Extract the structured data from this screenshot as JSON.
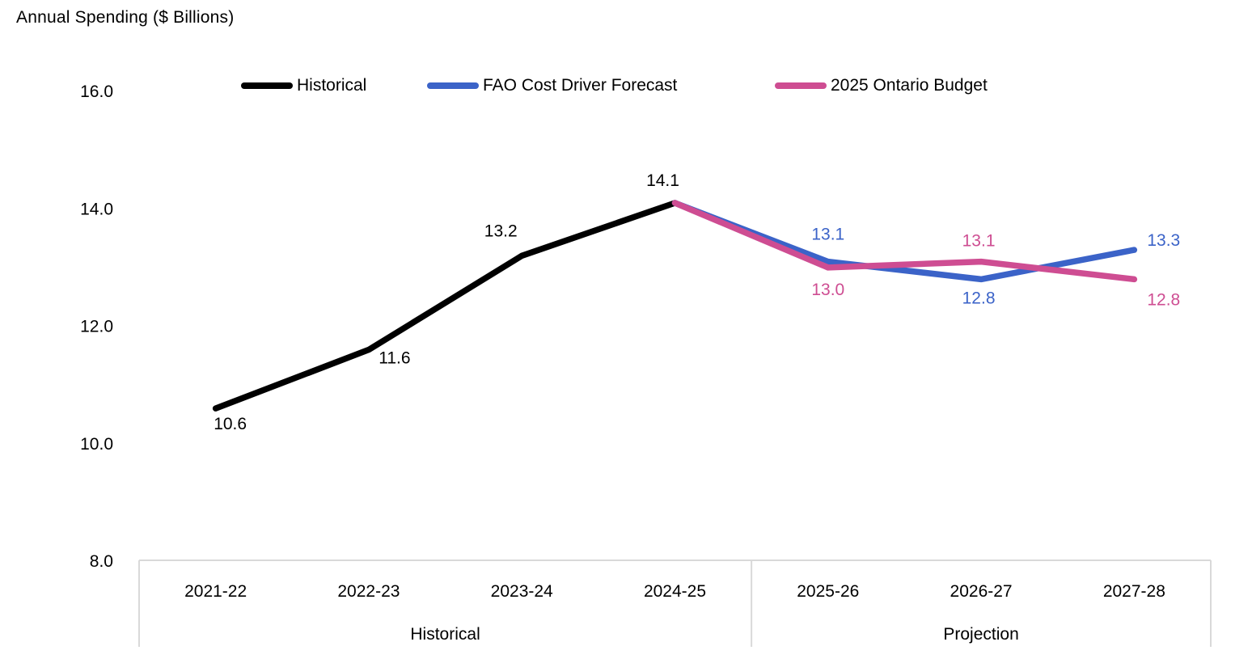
{
  "chart": {
    "title": "Annual Spending ($ Billions)"
  },
  "chart_data": {
    "type": "line",
    "title": "Annual Spending ($ Billions)",
    "categories": [
      "2021-22",
      "2022-23",
      "2023-24",
      "2024-25",
      "2025-26",
      "2026-27",
      "2027-28"
    ],
    "category_groups": [
      {
        "label": "Historical",
        "start": 0,
        "end": 3
      },
      {
        "label": "Projection",
        "start": 4,
        "end": 6
      }
    ],
    "y_ticks": [
      "16.0",
      "14.0",
      "12.0",
      "10.0",
      "8.0"
    ],
    "ylim": [
      8.0,
      16.0
    ],
    "grid": false,
    "legend_position": "top",
    "axis_box_color": "#d9d9d9",
    "series": [
      {
        "name": "Historical",
        "color": "#000000",
        "x_indices": [
          0,
          1,
          2,
          3
        ],
        "values": [
          10.6,
          11.6,
          13.2,
          14.1
        ],
        "labeled": [
          true,
          true,
          true,
          true
        ]
      },
      {
        "name": "FAO Cost Driver Forecast",
        "color": "#3B63C8",
        "x_indices": [
          3,
          4,
          5,
          6
        ],
        "values": [
          14.1,
          13.1,
          12.8,
          13.3
        ],
        "labeled": [
          false,
          true,
          true,
          true
        ]
      },
      {
        "name": "2025 Ontario Budget",
        "color": "#CE4D92",
        "x_indices": [
          3,
          4,
          5,
          6
        ],
        "values": [
          14.1,
          13.0,
          13.1,
          12.8
        ],
        "labeled": [
          false,
          true,
          true,
          true
        ]
      }
    ]
  }
}
